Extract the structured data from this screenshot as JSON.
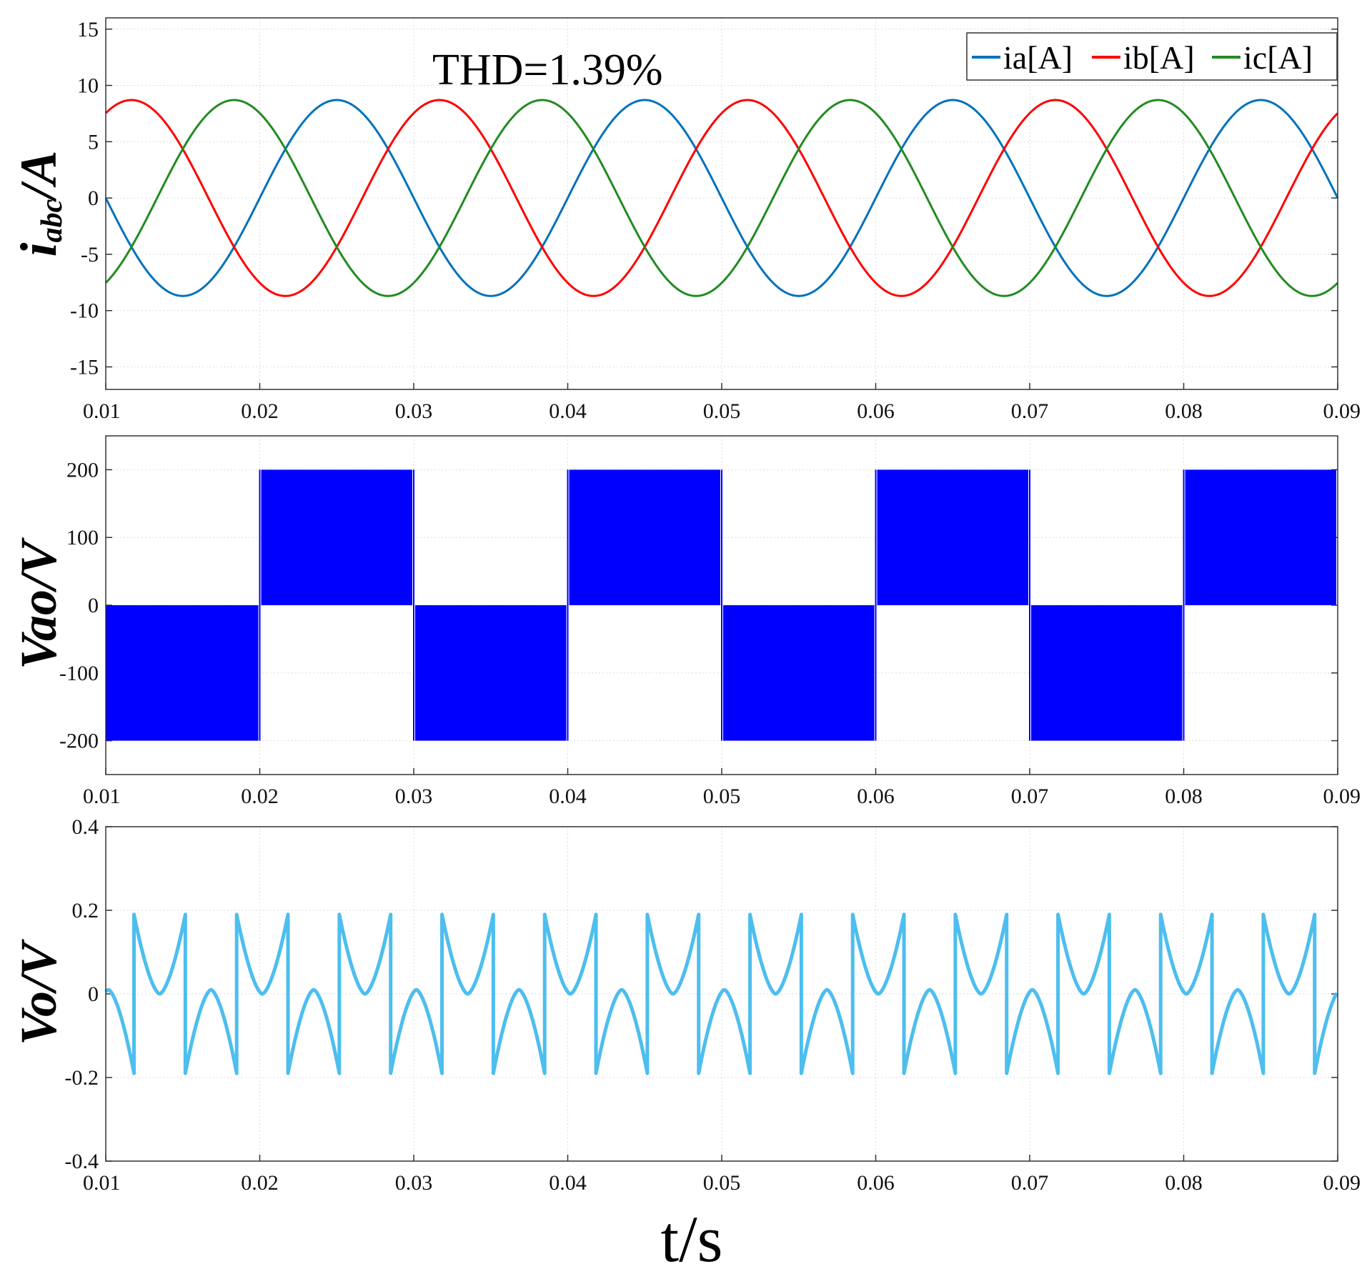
{
  "chart_data": [
    {
      "type": "line",
      "id": "currents",
      "ylabel_main": "i",
      "ylabel_sub": "abc",
      "ylabel_unit": "/A",
      "xlim": [
        0.01,
        0.09
      ],
      "ylim": [
        -17,
        16
      ],
      "yticks": [
        15,
        10,
        5,
        0,
        -5,
        -10,
        -15
      ],
      "xticks": [
        0.01,
        0.02,
        0.03,
        0.04,
        0.05,
        0.06,
        0.07,
        0.08,
        0.09
      ],
      "grid": true,
      "legend_position": "top-right",
      "annotation": "THD=1.39%",
      "frequency_hz": 50,
      "series": [
        {
          "name": "ia[A]",
          "color": "#0072BD",
          "amplitude": 8.7,
          "phase_deg": 0
        },
        {
          "name": "ib[A]",
          "color": "#FF0000",
          "amplitude": 8.7,
          "phase_deg": 120
        },
        {
          "name": "ic[A]",
          "color": "#228B22",
          "amplitude": 8.7,
          "phase_deg": 240
        }
      ]
    },
    {
      "type": "line",
      "id": "vao",
      "ylabel": "Vao/V",
      "xlim": [
        0.01,
        0.09
      ],
      "ylim": [
        -250,
        250
      ],
      "yticks": [
        200,
        100,
        0,
        -100,
        -200
      ],
      "xticks": [
        0.01,
        0.02,
        0.03,
        0.04,
        0.05,
        0.06,
        0.07,
        0.08,
        0.09
      ],
      "grid": true,
      "color": "#0000FF",
      "band_high": 200,
      "band_low": 0,
      "segments": [
        {
          "x_start": 0.01,
          "x_end": 0.02,
          "v_min": -200,
          "v_max": 0
        },
        {
          "x_start": 0.02,
          "x_end": 0.03,
          "v_min": 0,
          "v_max": 200
        },
        {
          "x_start": 0.03,
          "x_end": 0.04,
          "v_min": -200,
          "v_max": 0
        },
        {
          "x_start": 0.04,
          "x_end": 0.05,
          "v_min": 0,
          "v_max": 200
        },
        {
          "x_start": 0.05,
          "x_end": 0.06,
          "v_min": -200,
          "v_max": 0
        },
        {
          "x_start": 0.06,
          "x_end": 0.07,
          "v_min": 0,
          "v_max": 200
        },
        {
          "x_start": 0.07,
          "x_end": 0.08,
          "v_min": -200,
          "v_max": 0
        },
        {
          "x_start": 0.08,
          "x_end": 0.09,
          "v_min": 0,
          "v_max": 200
        }
      ]
    },
    {
      "type": "line",
      "id": "vo",
      "ylabel": "Vo/V",
      "xlabel": "t/s",
      "xlim": [
        0.01,
        0.09
      ],
      "ylim": [
        -0.4,
        0.4
      ],
      "yticks": [
        0.4,
        0.2,
        0,
        -0.2,
        -0.4
      ],
      "xticks": [
        0.01,
        0.02,
        0.03,
        0.04,
        0.05,
        0.06,
        0.07,
        0.08,
        0.09
      ],
      "grid": true,
      "color": "#4DBEEE",
      "period_s": 0.006667,
      "peak_high": 0.19,
      "trough_high": 0.0,
      "peak_low": 0.01,
      "trough_low": -0.19
    }
  ]
}
